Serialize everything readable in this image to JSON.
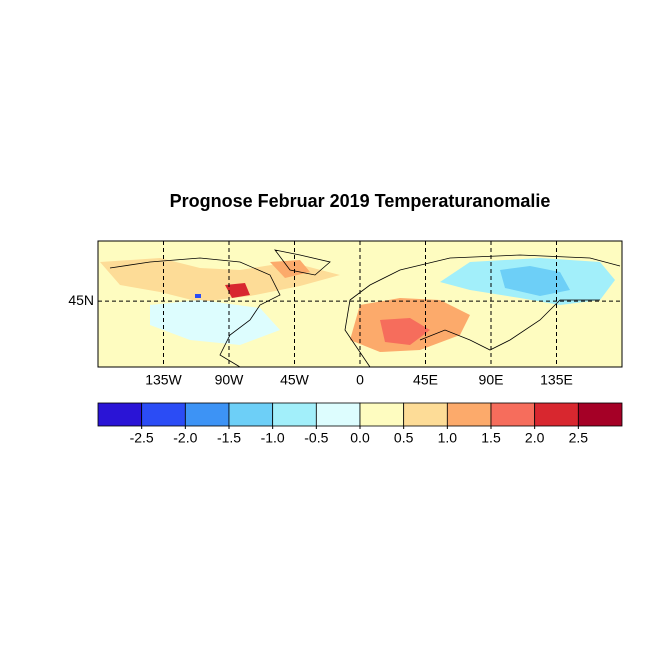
{
  "chart_data": {
    "type": "map",
    "title": "Prognose Februar 2019 Temperaturanomalie",
    "xlim": [
      -180,
      180
    ],
    "ylim": [
      -1,
      87
    ],
    "xticks": [
      {
        "value": -135,
        "label": "135W"
      },
      {
        "value": -90,
        "label": "90W"
      },
      {
        "value": -45,
        "label": "45W"
      },
      0,
      {
        "value": 45,
        "label": "45E"
      },
      {
        "value": 90,
        "label": "90E"
      },
      {
        "value": 135,
        "label": "135E"
      }
    ],
    "yticks": [
      {
        "value": 45,
        "label": "45N"
      }
    ],
    "grid": true,
    "colorbar": {
      "levels": [
        -2.5,
        {
          "value": -2,
          "label": "-2.0"
        },
        -1.5,
        {
          "value": -1,
          "label": "-1.0"
        },
        -0.5,
        {
          "value": 0,
          "label": "0.0"
        },
        0.5,
        {
          "value": 1,
          "label": "1.0"
        },
        1.5,
        {
          "value": 2,
          "label": "2.0"
        },
        2.5
      ],
      "colors": [
        "#2a14d6",
        "#2b4cf5",
        "#3d93f5",
        "#6dcff7",
        "#a2effa",
        "#ddfdfe",
        "#fefcc0",
        "#fddc97",
        "#fcaa6b",
        "#f66d5c",
        "#d8272f",
        "#a50026"
      ]
    }
  }
}
